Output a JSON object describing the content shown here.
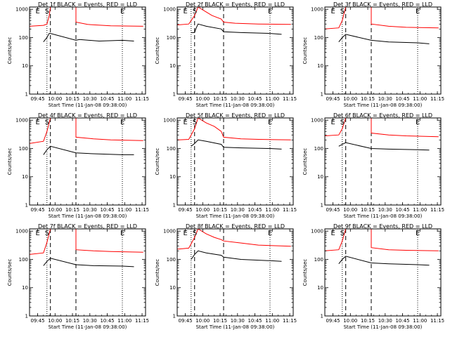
{
  "chart_data": [
    {
      "type": "line",
      "title": "Det 1f BLACK = Events, RED = LLD",
      "xlabel": "Start Time (11-Jan-08 09:38:00)",
      "ylabel": "Counts/sec",
      "x_range_minutes": [
        0,
        100
      ],
      "y_scale": "log",
      "ylim": [
        1,
        1200
      ],
      "x_tick_labels": [
        "09:45",
        "10:00",
        "10:15",
        "10:30",
        "10:45",
        "11:00",
        "11:15"
      ],
      "y_tick_labels": [
        "1",
        "10",
        "100",
        "1000"
      ],
      "markers": {
        "E1": 7,
        "S": 15,
        "E2": 80
      },
      "dotted_lines": [
        15,
        80
      ],
      "dashed_lines": [
        18,
        40
      ],
      "series": [
        {
          "name": "RED = LLD",
          "color": "#ff0000",
          "points": [
            [
              0,
              250
            ],
            [
              12,
              270
            ],
            [
              15,
              300
            ],
            [
              17,
              600
            ],
            [
              18,
              1200
            ],
            [
              40,
              1200
            ],
            [
              40,
              350
            ],
            [
              50,
              290
            ],
            [
              70,
              260
            ],
            [
              98,
              250
            ]
          ]
        },
        {
          "name": "BLACK = Events",
          "color": "#000000",
          "points": [
            [
              12,
              70
            ],
            [
              13,
              80
            ],
            [
              15,
              100
            ],
            [
              17,
              140
            ],
            [
              18,
              140
            ],
            [
              40,
              80
            ],
            [
              43,
              85
            ],
            [
              60,
              75
            ],
            [
              80,
              80
            ],
            [
              90,
              75
            ]
          ]
        }
      ]
    },
    {
      "type": "line",
      "title": "Det 2f BLACK = Events, RED = LLD",
      "xlabel": "Start Time (11-Jan-08 09:38:00)",
      "ylabel": "Counts/sec",
      "x_range_minutes": [
        0,
        100
      ],
      "y_scale": "log",
      "ylim": [
        1,
        1200
      ],
      "x_tick_labels": [
        "09:45",
        "10:00",
        "10:15",
        "10:30",
        "10:45",
        "11:00",
        "11:15"
      ],
      "y_tick_labels": [
        "1",
        "10",
        "100",
        "1000"
      ],
      "markers": {
        "E1": 7,
        "S": 15,
        "E2": 80
      },
      "dotted_lines": [
        12,
        80
      ],
      "dashed_lines": [
        15,
        40
      ],
      "series": [
        {
          "name": "RED = LLD",
          "color": "#ff0000",
          "points": [
            [
              0,
              280
            ],
            [
              10,
              300
            ],
            [
              15,
              600
            ],
            [
              18,
              1200
            ],
            [
              25,
              800
            ],
            [
              30,
              600
            ],
            [
              38,
              450
            ],
            [
              40,
              350
            ],
            [
              50,
              320
            ],
            [
              70,
              300
            ],
            [
              98,
              290
            ]
          ]
        },
        {
          "name": "BLACK = Events",
          "color": "#000000",
          "points": [
            [
              12,
              150
            ],
            [
              15,
              150
            ],
            [
              16,
              200
            ],
            [
              18,
              300
            ],
            [
              25,
              250
            ],
            [
              38,
              200
            ],
            [
              40,
              160
            ],
            [
              55,
              150
            ],
            [
              80,
              140
            ],
            [
              90,
              130
            ]
          ]
        }
      ]
    },
    {
      "type": "line",
      "title": "Det 3f BLACK = Events, RED = LLD",
      "xlabel": "Start Time (11-Jan-08 09:38:00)",
      "ylabel": "Counts/sec",
      "x_range_minutes": [
        0,
        100
      ],
      "y_scale": "log",
      "ylim": [
        1,
        1200
      ],
      "x_tick_labels": [
        "09:45",
        "10:00",
        "10:15",
        "10:30",
        "10:45",
        "11:00",
        "11:15"
      ],
      "y_tick_labels": [
        "1",
        "10",
        "100",
        "1000"
      ],
      "markers": {
        "E1": 7,
        "S": 15,
        "E2": 80
      },
      "dotted_lines": [
        15,
        80
      ],
      "dashed_lines": [
        18,
        40
      ],
      "series": [
        {
          "name": "RED = LLD",
          "color": "#ff0000",
          "points": [
            [
              0,
              200
            ],
            [
              12,
              220
            ],
            [
              15,
              400
            ],
            [
              18,
              1200
            ],
            [
              40,
              1200
            ],
            [
              40,
              300
            ],
            [
              55,
              250
            ],
            [
              70,
              230
            ],
            [
              98,
              220
            ]
          ]
        },
        {
          "name": "BLACK = Events",
          "color": "#000000",
          "points": [
            [
              12,
              70
            ],
            [
              15,
              100
            ],
            [
              18,
              130
            ],
            [
              40,
              80
            ],
            [
              55,
              70
            ],
            [
              80,
              65
            ],
            [
              90,
              60
            ]
          ]
        }
      ]
    },
    {
      "type": "line",
      "title": "Det 4f BLACK = Events, RED = LLD",
      "xlabel": "Start Time (11-Jan-08 09:38:00)",
      "ylabel": "Counts/sec",
      "x_range_minutes": [
        0,
        100
      ],
      "y_scale": "log",
      "ylim": [
        1,
        1200
      ],
      "x_tick_labels": [
        "09:45",
        "10:00",
        "10:15",
        "10:30",
        "10:45",
        "11:00",
        "11:15"
      ],
      "y_tick_labels": [
        "1",
        "10",
        "100",
        "1000"
      ],
      "markers": {
        "E1": 7,
        "S": 15,
        "E2": 80
      },
      "dotted_lines": [
        15,
        80
      ],
      "dashed_lines": [
        18,
        40
      ],
      "series": [
        {
          "name": "RED = LLD",
          "color": "#ff0000",
          "points": [
            [
              0,
              150
            ],
            [
              12,
              180
            ],
            [
              15,
              400
            ],
            [
              18,
              1200
            ],
            [
              40,
              1200
            ],
            [
              40,
              250
            ],
            [
              55,
              220
            ],
            [
              70,
              200
            ],
            [
              98,
              190
            ]
          ]
        },
        {
          "name": "BLACK = Events",
          "color": "#000000",
          "points": [
            [
              12,
              60
            ],
            [
              15,
              90
            ],
            [
              18,
              120
            ],
            [
              40,
              70
            ],
            [
              55,
              65
            ],
            [
              80,
              60
            ],
            [
              90,
              60
            ]
          ]
        }
      ]
    },
    {
      "type": "line",
      "title": "Det 5f BLACK = Events, RED = LLD",
      "xlabel": "Start Time (11-Jan-08 09:38:00)",
      "ylabel": "Counts/sec",
      "x_range_minutes": [
        0,
        100
      ],
      "y_scale": "log",
      "ylim": [
        1,
        1200
      ],
      "x_tick_labels": [
        "09:45",
        "10:00",
        "10:15",
        "10:30",
        "10:45",
        "11:00",
        "11:15"
      ],
      "y_tick_labels": [
        "1",
        "10",
        "100",
        "1000"
      ],
      "markers": {
        "E1": 7,
        "S": 15,
        "E2": 80
      },
      "dotted_lines": [
        12,
        80
      ],
      "dashed_lines": [
        15,
        40
      ],
      "series": [
        {
          "name": "RED = LLD",
          "color": "#ff0000",
          "points": [
            [
              0,
              200
            ],
            [
              10,
              210
            ],
            [
              15,
              500
            ],
            [
              18,
              1200
            ],
            [
              25,
              800
            ],
            [
              32,
              600
            ],
            [
              38,
              400
            ],
            [
              40,
              250
            ],
            [
              55,
              220
            ],
            [
              70,
              210
            ],
            [
              98,
              200
            ]
          ]
        },
        {
          "name": "BLACK = Events",
          "color": "#000000",
          "points": [
            [
              12,
              120
            ],
            [
              15,
              150
            ],
            [
              18,
              200
            ],
            [
              25,
              180
            ],
            [
              38,
              140
            ],
            [
              40,
              110
            ],
            [
              55,
              105
            ],
            [
              80,
              100
            ],
            [
              90,
              95
            ]
          ]
        }
      ]
    },
    {
      "type": "line",
      "title": "Det 6f BLACK = Events, RED = LLD",
      "xlabel": "Start Time (11-Jan-08 09:38:00)",
      "ylabel": "Counts/sec",
      "x_range_minutes": [
        0,
        100
      ],
      "y_scale": "log",
      "ylim": [
        1,
        1200
      ],
      "x_tick_labels": [
        "09:45",
        "10:00",
        "10:15",
        "10:30",
        "10:45",
        "11:00",
        "11:15"
      ],
      "y_tick_labels": [
        "1",
        "10",
        "100",
        "1000"
      ],
      "markers": {
        "E1": 7,
        "S": 15,
        "E2": 80
      },
      "dotted_lines": [
        15,
        80
      ],
      "dashed_lines": [
        18,
        40
      ],
      "series": [
        {
          "name": "RED = LLD",
          "color": "#ff0000",
          "points": [
            [
              0,
              280
            ],
            [
              12,
              300
            ],
            [
              15,
              500
            ],
            [
              18,
              1200
            ],
            [
              40,
              1200
            ],
            [
              40,
              350
            ],
            [
              55,
              300
            ],
            [
              70,
              280
            ],
            [
              98,
              260
            ]
          ]
        },
        {
          "name": "BLACK = Events",
          "color": "#000000",
          "points": [
            [
              12,
              120
            ],
            [
              15,
              140
            ],
            [
              18,
              160
            ],
            [
              40,
              100
            ],
            [
              55,
              95
            ],
            [
              80,
              90
            ],
            [
              90,
              88
            ]
          ]
        }
      ]
    },
    {
      "type": "line",
      "title": "Det 7f BLACK = Events, RED = LLD",
      "xlabel": "Start Time (11-Jan-08 09:38:00)",
      "ylabel": "Counts/sec",
      "x_range_minutes": [
        0,
        100
      ],
      "y_scale": "log",
      "ylim": [
        1,
        1200
      ],
      "x_tick_labels": [
        "09:45",
        "10:00",
        "10:15",
        "10:30",
        "10:45",
        "11:00",
        "11:15"
      ],
      "y_tick_labels": [
        "1",
        "10",
        "100",
        "1000"
      ],
      "markers": {
        "E1": 7,
        "S": 15,
        "E2": 80
      },
      "dotted_lines": [
        15,
        80
      ],
      "dashed_lines": [
        18,
        40
      ],
      "series": [
        {
          "name": "RED = LLD",
          "color": "#ff0000",
          "points": [
            [
              0,
              150
            ],
            [
              12,
              170
            ],
            [
              15,
              400
            ],
            [
              18,
              1200
            ],
            [
              40,
              1200
            ],
            [
              40,
              220
            ],
            [
              55,
              200
            ],
            [
              70,
              190
            ],
            [
              98,
              180
            ]
          ]
        },
        {
          "name": "BLACK = Events",
          "color": "#000000",
          "points": [
            [
              12,
              60
            ],
            [
              15,
              85
            ],
            [
              18,
              110
            ],
            [
              40,
              65
            ],
            [
              55,
              60
            ],
            [
              80,
              58
            ],
            [
              90,
              55
            ]
          ]
        }
      ]
    },
    {
      "type": "line",
      "title": "Det 8f BLACK = Events, RED = LLD",
      "xlabel": "Start Time (11-Jan-08 09:38:00)",
      "ylabel": "Counts/sec",
      "x_range_minutes": [
        0,
        100
      ],
      "y_scale": "log",
      "ylim": [
        1,
        1200
      ],
      "x_tick_labels": [
        "09:45",
        "10:00",
        "10:15",
        "10:30",
        "10:45",
        "11:00",
        "11:15"
      ],
      "y_tick_labels": [
        "1",
        "10",
        "100",
        "1000"
      ],
      "markers": {
        "E1": 7,
        "S": 15,
        "E2": 80
      },
      "dotted_lines": [
        12,
        80
      ],
      "dashed_lines": [
        15,
        40
      ],
      "series": [
        {
          "name": "RED = LLD",
          "color": "#ff0000",
          "points": [
            [
              0,
              230
            ],
            [
              10,
              250
            ],
            [
              15,
              600
            ],
            [
              18,
              1200
            ],
            [
              25,
              800
            ],
            [
              32,
              600
            ],
            [
              38,
              500
            ],
            [
              40,
              450
            ],
            [
              55,
              380
            ],
            [
              70,
              320
            ],
            [
              98,
              290
            ]
          ]
        },
        {
          "name": "BLACK = Events",
          "color": "#000000",
          "points": [
            [
              12,
              100
            ],
            [
              15,
              150
            ],
            [
              18,
              200
            ],
            [
              25,
              170
            ],
            [
              38,
              140
            ],
            [
              40,
              120
            ],
            [
              55,
              100
            ],
            [
              80,
              90
            ],
            [
              90,
              85
            ]
          ]
        }
      ]
    },
    {
      "type": "line",
      "title": "Det 9f BLACK = Events, RED = LLD",
      "xlabel": "Start Time (11-Jan-08 09:38:00)",
      "ylabel": "Counts/sec",
      "x_range_minutes": [
        0,
        100
      ],
      "y_scale": "log",
      "ylim": [
        1,
        1200
      ],
      "x_tick_labels": [
        "09:45",
        "10:00",
        "10:15",
        "10:30",
        "10:45",
        "11:00",
        "11:15"
      ],
      "y_tick_labels": [
        "1",
        "10",
        "100",
        "1000"
      ],
      "markers": {
        "E1": 7,
        "S": 15,
        "E2": 80
      },
      "dotted_lines": [
        15,
        80
      ],
      "dashed_lines": [
        18,
        40
      ],
      "series": [
        {
          "name": "RED = LLD",
          "color": "#ff0000",
          "points": [
            [
              0,
              200
            ],
            [
              12,
              220
            ],
            [
              15,
              450
            ],
            [
              18,
              1200
            ],
            [
              40,
              1200
            ],
            [
              40,
              260
            ],
            [
              55,
              220
            ],
            [
              70,
              210
            ],
            [
              98,
              200
            ]
          ]
        },
        {
          "name": "BLACK = Events",
          "color": "#000000",
          "points": [
            [
              12,
              70
            ],
            [
              15,
              100
            ],
            [
              18,
              130
            ],
            [
              40,
              75
            ],
            [
              55,
              70
            ],
            [
              80,
              65
            ],
            [
              90,
              62
            ]
          ]
        }
      ]
    }
  ]
}
